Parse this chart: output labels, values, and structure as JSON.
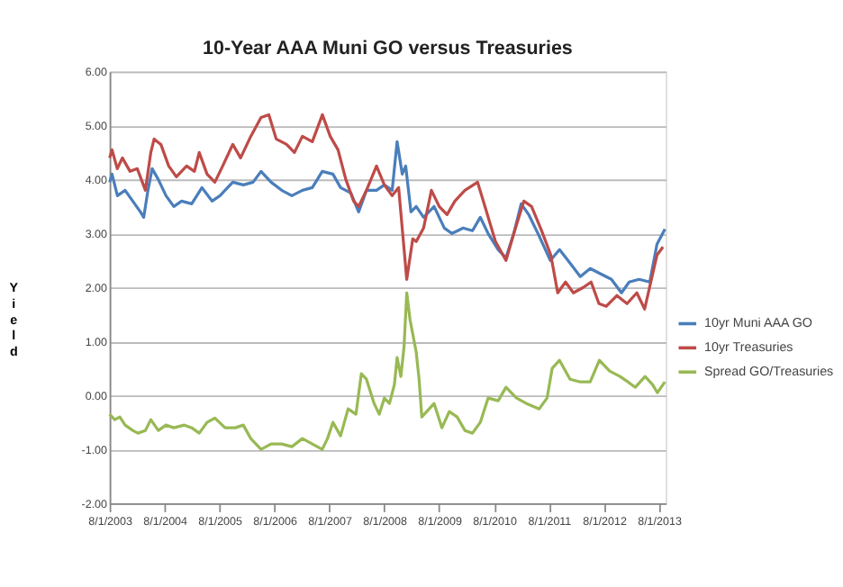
{
  "chart_data": {
    "type": "line",
    "title": "10-Year AAA Muni GO versus Treasuries",
    "ylabel": "Yield",
    "xlim": [
      "2003-08-01",
      "2013-09-15"
    ],
    "xticks": [
      {
        "value": "2003-08-01",
        "label": "8/1/2003"
      },
      {
        "value": "2004-08-01",
        "label": "8/1/2004"
      },
      {
        "value": "2005-08-01",
        "label": "8/1/2005"
      },
      {
        "value": "2006-08-01",
        "label": "8/1/2006"
      },
      {
        "value": "2007-08-01",
        "label": "8/1/2007"
      },
      {
        "value": "2008-08-01",
        "label": "8/1/2008"
      },
      {
        "value": "2009-08-01",
        "label": "8/1/2009"
      },
      {
        "value": "2010-08-01",
        "label": "8/1/2010"
      },
      {
        "value": "2011-08-01",
        "label": "8/1/2011"
      },
      {
        "value": "2012-08-01",
        "label": "8/1/2012"
      },
      {
        "value": "2013-08-01",
        "label": "8/1/2013"
      }
    ],
    "ylim": [
      -2,
      6
    ],
    "yticks": [
      {
        "value": -2,
        "label": "-2.00"
      },
      {
        "value": -1,
        "label": "-1.00"
      },
      {
        "value": 0,
        "label": "0.00"
      },
      {
        "value": 1,
        "label": "1.00"
      },
      {
        "value": 2,
        "label": "2.00"
      },
      {
        "value": 3,
        "label": "3.00"
      },
      {
        "value": 4,
        "label": "4.00"
      },
      {
        "value": 5,
        "label": "5.00"
      },
      {
        "value": 6,
        "label": "6.00"
      }
    ],
    "grid": "y",
    "legend": "right",
    "marker": "none",
    "line_style": "solid",
    "series": [
      {
        "name": "10yr Muni AAA GO",
        "color": "#4a7ebb",
        "x": [
          "2003-08-01",
          "2003-08-17",
          "2003-09-22",
          "2003-11-12",
          "2004-01-02",
          "2004-02-22",
          "2004-03-15",
          "2004-04-12",
          "2004-05-10",
          "2004-06-20",
          "2004-08-10",
          "2004-10-01",
          "2004-11-22",
          "2005-01-28",
          "2005-04-06",
          "2005-06-12",
          "2005-08-04",
          "2005-10-28",
          "2006-01-06",
          "2006-03-12",
          "2006-05-04",
          "2006-07-10",
          "2006-09-18",
          "2006-11-25",
          "2007-02-03",
          "2007-04-10",
          "2007-06-15",
          "2007-08-25",
          "2007-10-15",
          "2007-12-22",
          "2008-02-12",
          "2008-04-04",
          "2008-06-10",
          "2008-08-01",
          "2008-09-22",
          "2008-10-25",
          "2008-11-28",
          "2008-12-21",
          "2009-01-25",
          "2009-03-01",
          "2009-04-19",
          "2009-06-28",
          "2009-09-04",
          "2009-10-25",
          "2010-01-07",
          "2010-03-10",
          "2010-05-01",
          "2010-06-22",
          "2010-08-28",
          "2010-10-19",
          "2010-12-10",
          "2011-01-28",
          "2011-03-19",
          "2011-05-28",
          "2011-08-10",
          "2011-10-10",
          "2011-12-19",
          "2012-02-25",
          "2012-05-01",
          "2012-07-10",
          "2012-09-19",
          "2012-11-25",
          "2013-01-15",
          "2013-03-22",
          "2013-06-01",
          "2013-07-19",
          "2013-09-10"
        ],
        "values": [
          3.95,
          4.1,
          3.7,
          3.8,
          3.6,
          3.4,
          3.3,
          3.8,
          4.2,
          4.0,
          3.7,
          3.5,
          3.6,
          3.55,
          3.85,
          3.6,
          3.7,
          3.95,
          3.9,
          3.95,
          4.15,
          3.95,
          3.8,
          3.7,
          3.8,
          3.85,
          4.15,
          4.1,
          3.85,
          3.75,
          3.4,
          3.8,
          3.8,
          3.9,
          3.8,
          4.7,
          4.1,
          4.25,
          3.4,
          3.5,
          3.3,
          3.5,
          3.1,
          3.0,
          3.1,
          3.05,
          3.3,
          3.0,
          2.7,
          2.55,
          3.0,
          3.55,
          3.35,
          2.95,
          2.5,
          2.7,
          2.45,
          2.2,
          2.35,
          2.25,
          2.15,
          1.9,
          2.1,
          2.15,
          2.1,
          2.8,
          3.08
        ]
      },
      {
        "name": "10yr Treasuries",
        "color": "#be4b48",
        "x": [
          "2003-08-01",
          "2003-08-17",
          "2003-09-21",
          "2003-10-25",
          "2003-12-15",
          "2004-02-01",
          "2004-03-26",
          "2004-05-01",
          "2004-05-23",
          "2004-07-07",
          "2004-08-28",
          "2004-10-18",
          "2004-12-25",
          "2005-02-15",
          "2005-03-19",
          "2005-05-10",
          "2005-07-01",
          "2005-08-22",
          "2005-10-28",
          "2005-12-19",
          "2006-02-25",
          "2006-05-04",
          "2006-06-25",
          "2006-08-13",
          "2006-10-21",
          "2006-12-12",
          "2007-02-03",
          "2007-04-10",
          "2007-06-16",
          "2007-08-07",
          "2007-09-28",
          "2007-11-19",
          "2008-01-10",
          "2008-02-12",
          "2008-04-04",
          "2008-06-10",
          "2008-08-01",
          "2008-09-22",
          "2008-11-04",
          "2008-12-01",
          "2008-12-28",
          "2009-02-06",
          "2009-03-01",
          "2009-04-19",
          "2009-06-10",
          "2009-08-01",
          "2009-09-22",
          "2009-11-13",
          "2010-01-19",
          "2010-04-13",
          "2010-06-01",
          "2010-08-10",
          "2010-10-19",
          "2010-12-10",
          "2011-02-15",
          "2011-04-07",
          "2011-06-13",
          "2011-08-13",
          "2011-09-28",
          "2011-11-19",
          "2012-01-10",
          "2012-03-16",
          "2012-05-07",
          "2012-06-28",
          "2012-08-16",
          "2012-10-25",
          "2013-01-01",
          "2013-03-07",
          "2013-04-28",
          "2013-06-16",
          "2013-07-19",
          "2013-08-28"
        ],
        "values": [
          4.4,
          4.55,
          4.2,
          4.4,
          4.15,
          4.2,
          3.8,
          4.5,
          4.75,
          4.65,
          4.25,
          4.05,
          4.25,
          4.15,
          4.5,
          4.1,
          3.95,
          4.25,
          4.65,
          4.4,
          4.8,
          5.15,
          5.2,
          4.75,
          4.65,
          4.5,
          4.8,
          4.7,
          5.2,
          4.8,
          4.55,
          4.0,
          3.6,
          3.5,
          3.8,
          4.25,
          3.9,
          3.7,
          3.85,
          3.0,
          2.15,
          2.9,
          2.85,
          3.1,
          3.8,
          3.5,
          3.35,
          3.6,
          3.8,
          3.95,
          3.5,
          2.85,
          2.5,
          3.0,
          3.6,
          3.5,
          3.05,
          2.6,
          1.9,
          2.1,
          1.9,
          2.0,
          2.1,
          1.7,
          1.65,
          1.85,
          1.7,
          1.9,
          1.6,
          2.2,
          2.6,
          2.75
        ]
      },
      {
        "name": "Spread GO/Treasuries",
        "color": "#98b954",
        "x": [
          "2003-08-01",
          "2003-09-04",
          "2003-10-08",
          "2003-11-12",
          "2004-01-02",
          "2004-02-05",
          "2004-03-26",
          "2004-05-01",
          "2004-06-20",
          "2004-08-10",
          "2004-10-01",
          "2004-12-10",
          "2005-01-28",
          "2005-03-19",
          "2005-05-10",
          "2005-07-01",
          "2005-09-07",
          "2005-11-15",
          "2006-01-06",
          "2006-02-25",
          "2006-05-04",
          "2006-07-10",
          "2006-09-18",
          "2006-11-25",
          "2007-02-03",
          "2007-04-10",
          "2007-06-15",
          "2007-07-20",
          "2007-08-25",
          "2007-10-15",
          "2007-12-04",
          "2008-01-25",
          "2008-03-01",
          "2008-04-04",
          "2008-05-25",
          "2008-06-28",
          "2008-08-01",
          "2008-09-04",
          "2008-10-07",
          "2008-10-25",
          "2008-11-19",
          "2008-12-10",
          "2008-12-28",
          "2009-01-19",
          "2009-03-01",
          "2009-03-20",
          "2009-04-07",
          "2009-06-28",
          "2009-08-19",
          "2009-10-07",
          "2009-11-28",
          "2010-01-19",
          "2010-03-10",
          "2010-05-01",
          "2010-06-22",
          "2010-08-28",
          "2010-10-19",
          "2010-12-28",
          "2011-03-04",
          "2011-05-28",
          "2011-07-19",
          "2011-08-22",
          "2011-10-10",
          "2011-12-19",
          "2012-02-25",
          "2012-05-01",
          "2012-07-01",
          "2012-09-07",
          "2012-11-15",
          "2013-01-07",
          "2013-02-25",
          "2013-05-01",
          "2013-06-19",
          "2013-07-22",
          "2013-09-10"
        ],
        "values": [
          -0.35,
          -0.45,
          -0.4,
          -0.55,
          -0.65,
          -0.7,
          -0.65,
          -0.45,
          -0.65,
          -0.55,
          -0.6,
          -0.55,
          -0.6,
          -0.7,
          -0.5,
          -0.42,
          -0.6,
          -0.6,
          -0.55,
          -0.8,
          -1.0,
          -0.9,
          -0.9,
          -0.95,
          -0.8,
          -0.9,
          -1.0,
          -0.8,
          -0.5,
          -0.75,
          -0.25,
          -0.35,
          0.4,
          0.3,
          -0.15,
          -0.35,
          -0.05,
          -0.15,
          0.2,
          0.7,
          0.35,
          0.9,
          1.9,
          1.4,
          0.8,
          0.3,
          -0.4,
          -0.15,
          -0.6,
          -0.3,
          -0.4,
          -0.65,
          -0.7,
          -0.5,
          -0.05,
          -0.1,
          0.15,
          -0.05,
          -0.15,
          -0.25,
          -0.05,
          0.5,
          0.65,
          0.3,
          0.25,
          0.25,
          0.65,
          0.45,
          0.35,
          0.25,
          0.15,
          0.35,
          0.2,
          0.05,
          0.25
        ]
      }
    ]
  }
}
